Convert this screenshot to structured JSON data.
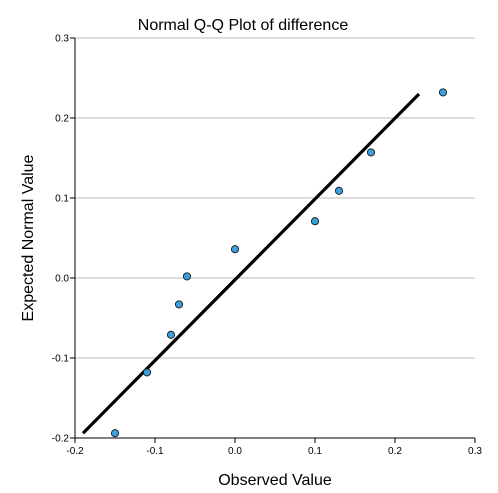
{
  "chart_data": {
    "type": "scatter",
    "title": "Normal Q-Q Plot of difference",
    "xlabel": "Observed Value",
    "ylabel": "Expected Normal Value",
    "xlim": [
      -0.2,
      0.3
    ],
    "ylim": [
      -0.2,
      0.3
    ],
    "xticks": [
      -0.2,
      -0.1,
      0.0,
      0.1,
      0.2,
      0.3
    ],
    "yticks": [
      -0.2,
      -0.1,
      0.0,
      0.1,
      0.2,
      0.3
    ],
    "xtick_labels": [
      "-0.2",
      "-0.1",
      "0.0",
      "0.1",
      "0.2",
      "0.3"
    ],
    "ytick_labels": [
      "-0.2",
      "-0.1",
      "0.0",
      "0.1",
      "0.2",
      "0.3"
    ],
    "grid": "horizontal",
    "points": [
      {
        "x": -0.15,
        "y": -0.194
      },
      {
        "x": -0.11,
        "y": -0.118
      },
      {
        "x": -0.08,
        "y": -0.071
      },
      {
        "x": -0.07,
        "y": -0.033
      },
      {
        "x": -0.06,
        "y": 0.002
      },
      {
        "x": 0.0,
        "y": 0.036
      },
      {
        "x": 0.1,
        "y": 0.071
      },
      {
        "x": 0.13,
        "y": 0.109
      },
      {
        "x": 0.17,
        "y": 0.157
      },
      {
        "x": 0.26,
        "y": 0.232
      }
    ],
    "reference_line": {
      "x": [
        -0.19,
        0.23
      ],
      "y": [
        -0.194,
        0.23
      ]
    },
    "colors": {
      "point_fill": "#3aa0dd",
      "point_stroke": "#1a1a1a",
      "reference_line": "#000000",
      "gridline": "#b8b8b8",
      "axis": "#000000"
    }
  }
}
